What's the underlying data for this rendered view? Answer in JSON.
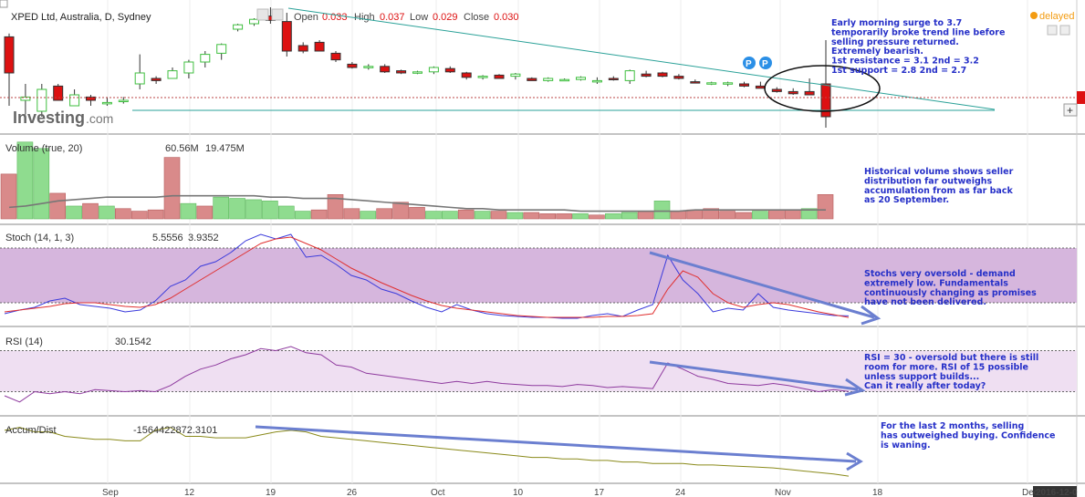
{
  "header": {
    "symbol": "XPED Ltd, Australia, D, Sydney",
    "open_label": "Open",
    "open": "0.033",
    "high_label": "High",
    "high": "0.037",
    "low_label": "Low",
    "low": "0.029",
    "close_label": "Close",
    "close": "0.030",
    "delayed": "delayed",
    "logo_main": "Investing",
    "logo_suffix": ".com",
    "badge_p": "P"
  },
  "annotations": {
    "price": [
      "Early morning surge to 3.7",
      "temporarily broke trend line before",
      "selling pressure returned.",
      "Extremely bearish.",
      "1st resistance = 3.1 2nd = 3.2",
      "1st support = 2.8 2nd = 2.7"
    ],
    "volume": [
      "Historical volume shows seller",
      "distribution far outweighs",
      "accumulation from as far back",
      "as 20 September."
    ],
    "stoch": [
      "Stochs very oversold - demand",
      "extremely low. Fundamentals",
      "continuously changing as promises",
      "have not been delivered."
    ],
    "rsi": [
      "RSI = 30 - oversold but there is still",
      "room for more. RSI of 15 possible",
      "unless support builds...",
      "Can it really after today?"
    ],
    "ad": [
      "For the last 2 months, selling",
      "has outweighed buying. Confidence",
      "is waning."
    ]
  },
  "chart_data": [
    {
      "type": "candlestick",
      "title": "XPED Ltd, Australia, D, Sydney",
      "ylim": [
        0.029,
        0.04
      ],
      "candles": [
        {
          "o": 0.0373,
          "h": 0.0376,
          "l": 0.031,
          "c": 0.034
        },
        {
          "o": 0.0315,
          "h": 0.033,
          "l": 0.0302,
          "c": 0.0318
        },
        {
          "o": 0.0305,
          "h": 0.033,
          "l": 0.03,
          "c": 0.0325
        },
        {
          "o": 0.0328,
          "h": 0.033,
          "l": 0.0315,
          "c": 0.0315
        },
        {
          "o": 0.031,
          "h": 0.0325,
          "l": 0.031,
          "c": 0.032
        },
        {
          "o": 0.0318,
          "h": 0.032,
          "l": 0.031,
          "c": 0.0315
        },
        {
          "o": 0.0312,
          "h": 0.0318,
          "l": 0.031,
          "c": 0.0313
        },
        {
          "o": 0.0315,
          "h": 0.0318,
          "l": 0.0312,
          "c": 0.0315
        },
        {
          "o": 0.033,
          "h": 0.0357,
          "l": 0.0325,
          "c": 0.034
        },
        {
          "o": 0.0335,
          "h": 0.0337,
          "l": 0.033,
          "c": 0.0333
        },
        {
          "o": 0.0335,
          "h": 0.0345,
          "l": 0.0335,
          "c": 0.0342
        },
        {
          "o": 0.034,
          "h": 0.0352,
          "l": 0.0335,
          "c": 0.035
        },
        {
          "o": 0.035,
          "h": 0.036,
          "l": 0.0345,
          "c": 0.0357
        },
        {
          "o": 0.0358,
          "h": 0.0367,
          "l": 0.0352,
          "c": 0.0366
        },
        {
          "o": 0.038,
          "h": 0.0385,
          "l": 0.0378,
          "c": 0.0384
        },
        {
          "o": 0.0385,
          "h": 0.039,
          "l": 0.0383,
          "c": 0.0389
        },
        {
          "o": 0.0392,
          "h": 0.04,
          "l": 0.0385,
          "c": 0.0388
        },
        {
          "o": 0.0387,
          "h": 0.0395,
          "l": 0.0355,
          "c": 0.036
        },
        {
          "o": 0.0365,
          "h": 0.0368,
          "l": 0.0358,
          "c": 0.036
        },
        {
          "o": 0.0368,
          "h": 0.037,
          "l": 0.036,
          "c": 0.036
        },
        {
          "o": 0.0358,
          "h": 0.036,
          "l": 0.035,
          "c": 0.0352
        },
        {
          "o": 0.0348,
          "h": 0.035,
          "l": 0.0344,
          "c": 0.0345
        },
        {
          "o": 0.0346,
          "h": 0.0348,
          "l": 0.0343,
          "c": 0.0346
        },
        {
          "o": 0.0346,
          "h": 0.0348,
          "l": 0.034,
          "c": 0.0341
        },
        {
          "o": 0.0342,
          "h": 0.0343,
          "l": 0.0339,
          "c": 0.034
        },
        {
          "o": 0.034,
          "h": 0.0342,
          "l": 0.0339,
          "c": 0.0341
        },
        {
          "o": 0.0341,
          "h": 0.0346,
          "l": 0.0339,
          "c": 0.0345
        },
        {
          "o": 0.0344,
          "h": 0.0346,
          "l": 0.034,
          "c": 0.0341
        },
        {
          "o": 0.034,
          "h": 0.0341,
          "l": 0.0334,
          "c": 0.0336
        },
        {
          "o": 0.0336,
          "h": 0.0338,
          "l": 0.0334,
          "c": 0.0337
        },
        {
          "o": 0.0338,
          "h": 0.0339,
          "l": 0.0335,
          "c": 0.0335
        },
        {
          "o": 0.0337,
          "h": 0.034,
          "l": 0.0334,
          "c": 0.0339
        },
        {
          "o": 0.0335,
          "h": 0.0336,
          "l": 0.0333,
          "c": 0.0333
        },
        {
          "o": 0.0333,
          "h": 0.0336,
          "l": 0.0332,
          "c": 0.0335
        },
        {
          "o": 0.0333,
          "h": 0.0335,
          "l": 0.0333,
          "c": 0.0334
        },
        {
          "o": 0.0334,
          "h": 0.0337,
          "l": 0.0333,
          "c": 0.0336
        },
        {
          "o": 0.0333,
          "h": 0.0336,
          "l": 0.033,
          "c": 0.0333
        },
        {
          "o": 0.0335,
          "h": 0.0337,
          "l": 0.0333,
          "c": 0.0334
        },
        {
          "o": 0.0333,
          "h": 0.0343,
          "l": 0.033,
          "c": 0.0342
        },
        {
          "o": 0.0339,
          "h": 0.0342,
          "l": 0.0336,
          "c": 0.0337
        },
        {
          "o": 0.034,
          "h": 0.0341,
          "l": 0.0336,
          "c": 0.0337
        },
        {
          "o": 0.0337,
          "h": 0.0339,
          "l": 0.0334,
          "c": 0.0335
        },
        {
          "o": 0.0332,
          "h": 0.0334,
          "l": 0.0331,
          "c": 0.0331
        },
        {
          "o": 0.033,
          "h": 0.0332,
          "l": 0.0329,
          "c": 0.0331
        },
        {
          "o": 0.0331,
          "h": 0.0332,
          "l": 0.0328,
          "c": 0.0331
        },
        {
          "o": 0.033,
          "h": 0.0332,
          "l": 0.0327,
          "c": 0.0328
        },
        {
          "o": 0.0328,
          "h": 0.0332,
          "l": 0.0326,
          "c": 0.0326
        },
        {
          "o": 0.0325,
          "h": 0.0327,
          "l": 0.0322,
          "c": 0.0323
        },
        {
          "o": 0.0323,
          "h": 0.0326,
          "l": 0.032,
          "c": 0.0321
        },
        {
          "o": 0.0323,
          "h": 0.0335,
          "l": 0.032,
          "c": 0.032
        },
        {
          "o": 0.033,
          "h": 0.037,
          "l": 0.029,
          "c": 0.03
        }
      ],
      "close": 0.03
    },
    {
      "type": "bar",
      "title": "Volume (true, 20)",
      "legend": [
        "60.56M",
        "19.475M"
      ],
      "ylim": [
        0,
        60.56
      ],
      "values": [
        35,
        60,
        55,
        20,
        10,
        12,
        10,
        8,
        6,
        7,
        48,
        12,
        10,
        17,
        16,
        15,
        14,
        10,
        6,
        7,
        19,
        8,
        6,
        8,
        13,
        9,
        6,
        6,
        7,
        6,
        6,
        5,
        5,
        4,
        4,
        4,
        3,
        4,
        5,
        6,
        14,
        6,
        7,
        8,
        6,
        5,
        6,
        7,
        7,
        8,
        19
      ],
      "up": [
        false,
        true,
        true,
        false,
        true,
        false,
        true,
        false,
        false,
        false,
        false,
        true,
        false,
        true,
        true,
        true,
        true,
        true,
        true,
        false,
        false,
        false,
        true,
        false,
        false,
        false,
        true,
        true,
        false,
        true,
        false,
        true,
        false,
        false,
        false,
        true,
        false,
        true,
        true,
        false,
        true,
        false,
        false,
        false,
        false,
        false,
        true,
        false,
        false,
        true,
        false
      ],
      "ma": [
        9,
        10,
        12,
        14,
        15,
        16,
        17,
        17,
        17,
        17,
        18,
        18,
        18,
        18,
        18,
        18,
        17,
        17,
        16,
        16,
        16,
        15,
        14,
        13,
        12,
        11,
        10,
        9,
        8,
        8,
        7,
        7,
        7,
        7,
        7,
        6,
        6,
        6,
        6,
        6,
        6,
        6,
        7,
        7,
        7,
        7,
        7,
        7,
        7,
        7,
        7
      ]
    },
    {
      "type": "line",
      "title": "Stoch (14, 1, 3)",
      "legend": [
        "5.5556",
        "3.9352"
      ],
      "ylim": [
        0,
        100
      ],
      "bands": [
        20,
        80
      ],
      "series": [
        {
          "name": "5.5556",
          "color": "#3b3bdc",
          "values": [
            8,
            12,
            15,
            22,
            25,
            18,
            16,
            14,
            10,
            12,
            22,
            38,
            45,
            60,
            65,
            75,
            88,
            95,
            90,
            95,
            70,
            72,
            62,
            50,
            45,
            35,
            30,
            22,
            15,
            10,
            18,
            12,
            8,
            6,
            5,
            4,
            4,
            3,
            3,
            6,
            8,
            5,
            12,
            18,
            72,
            45,
            30,
            10,
            14,
            12,
            30,
            15,
            12,
            10,
            8,
            6,
            5.5556
          ]
        },
        {
          "name": "3.9352",
          "color": "#e03030",
          "values": [
            10,
            12,
            14,
            16,
            19,
            20,
            20,
            18,
            16,
            15,
            18,
            25,
            35,
            45,
            55,
            65,
            75,
            85,
            90,
            92,
            85,
            78,
            68,
            58,
            50,
            42,
            35,
            28,
            22,
            17,
            14,
            12,
            10,
            8,
            6,
            5,
            4,
            4,
            4,
            4,
            5,
            5,
            6,
            8,
            35,
            55,
            48,
            30,
            20,
            15,
            18,
            20,
            18,
            14,
            10,
            7,
            3.9352
          ]
        }
      ]
    },
    {
      "type": "line",
      "title": "RSI (14)",
      "legend": [
        "30.1542"
      ],
      "ylim": [
        10,
        90
      ],
      "bands": [
        30,
        70
      ],
      "series": [
        {
          "name": "30.1542",
          "color": "#8e3a9e",
          "values": [
            26,
            20,
            30,
            28,
            30,
            28,
            32,
            31,
            30,
            31,
            30,
            36,
            45,
            52,
            56,
            62,
            66,
            72,
            70,
            74,
            68,
            66,
            56,
            54,
            48,
            46,
            44,
            42,
            40,
            38,
            40,
            38,
            40,
            38,
            37,
            36,
            36,
            35,
            37,
            36,
            34,
            35,
            34,
            33,
            58,
            52,
            45,
            42,
            38,
            37,
            36,
            38,
            36,
            33,
            30,
            32,
            30.1542
          ]
        }
      ]
    },
    {
      "type": "line",
      "title": "Accum/Dist",
      "legend": [
        "-1564422872.3101"
      ],
      "ylim": [
        -1600000000,
        -1200000000
      ],
      "series": [
        {
          "name": "-1564422872.3101",
          "color": "#8a8a1a",
          "values": [
            -1260000000,
            -1240000000,
            -1270000000,
            -1270000000,
            -1300000000,
            -1310000000,
            -1320000000,
            -1320000000,
            -1330000000,
            -1330000000,
            -1260000000,
            -1240000000,
            -1300000000,
            -1300000000,
            -1310000000,
            -1310000000,
            -1310000000,
            -1290000000,
            -1270000000,
            -1260000000,
            -1270000000,
            -1300000000,
            -1310000000,
            -1320000000,
            -1330000000,
            -1340000000,
            -1350000000,
            -1360000000,
            -1370000000,
            -1380000000,
            -1390000000,
            -1400000000,
            -1410000000,
            -1420000000,
            -1430000000,
            -1440000000,
            -1440000000,
            -1450000000,
            -1450000000,
            -1460000000,
            -1460000000,
            -1470000000,
            -1470000000,
            -1480000000,
            -1480000000,
            -1480000000,
            -1490000000,
            -1490000000,
            -1495000000,
            -1500000000,
            -1505000000,
            -1510000000,
            -1520000000,
            -1530000000,
            -1540000000,
            -1550000000,
            -1564422872
          ]
        }
      ]
    },
    {
      "type": "axis",
      "x_ticks": [
        "Sep",
        "12",
        "19",
        "26",
        "Oct",
        "10",
        "17",
        "24",
        "Nov",
        "18",
        "Dec"
      ],
      "x_end_label": "2016-12-0"
    }
  ],
  "colors": {
    "up": "#3fbf3f",
    "down": "#dd1111",
    "vol_up": "#8fdc8f",
    "vol_down": "#d98a8a",
    "trend": "#2aa198",
    "band_stoch": "#d6b6dd",
    "band_rsi": "#efdff2",
    "arrow": "#6b7fd0",
    "note": "#2630c8"
  }
}
